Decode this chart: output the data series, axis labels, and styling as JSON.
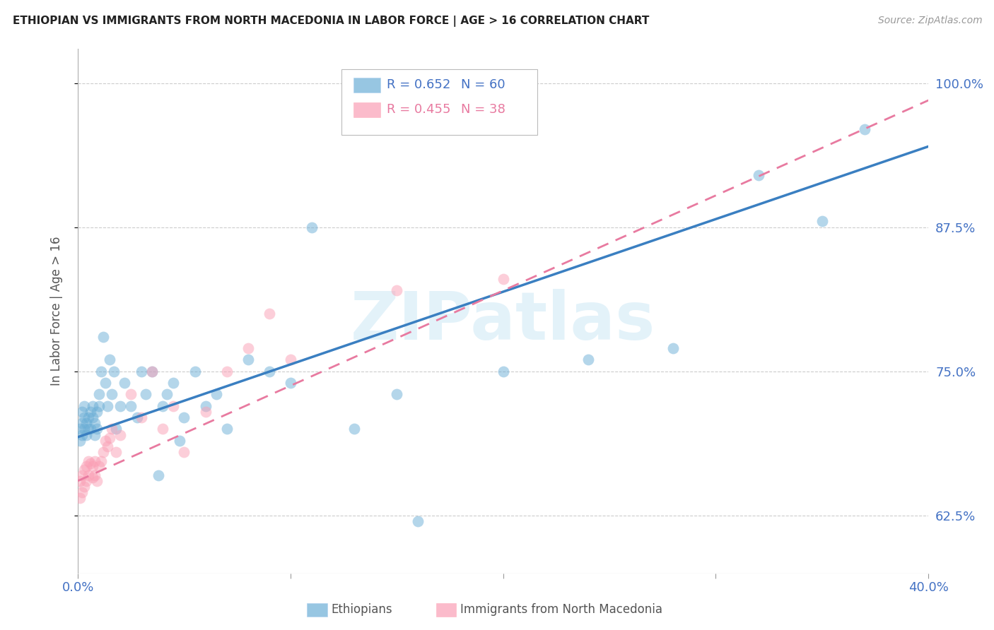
{
  "title": "ETHIOPIAN VS IMMIGRANTS FROM NORTH MACEDONIA IN LABOR FORCE | AGE > 16 CORRELATION CHART",
  "source": "Source: ZipAtlas.com",
  "ylabel": "In Labor Force | Age > 16",
  "xlim": [
    0.0,
    0.4
  ],
  "ylim": [
    0.575,
    1.03
  ],
  "xticks": [
    0.0,
    0.1,
    0.2,
    0.3,
    0.4
  ],
  "xtick_labels": [
    "0.0%",
    "",
    "",
    "",
    "40.0%"
  ],
  "ytick_labels_right": [
    "62.5%",
    "75.0%",
    "87.5%",
    "100.0%"
  ],
  "yticks_right": [
    0.625,
    0.75,
    0.875,
    1.0
  ],
  "blue_color": "#6baed6",
  "pink_color": "#fa9fb5",
  "blue_line_color": "#3a7fc1",
  "pink_line_color": "#e87aa0",
  "blue_label": "Ethiopians",
  "pink_label": "Immigrants from North Macedonia",
  "watermark": "ZIPatlas",
  "background_color": "#ffffff",
  "grid_color": "#cccccc",
  "blue_scatter_x": [
    0.001,
    0.001,
    0.002,
    0.002,
    0.002,
    0.003,
    0.003,
    0.003,
    0.004,
    0.004,
    0.005,
    0.005,
    0.006,
    0.006,
    0.007,
    0.007,
    0.008,
    0.008,
    0.009,
    0.009,
    0.01,
    0.01,
    0.011,
    0.012,
    0.013,
    0.014,
    0.015,
    0.016,
    0.017,
    0.018,
    0.02,
    0.022,
    0.025,
    0.028,
    0.03,
    0.032,
    0.035,
    0.038,
    0.04,
    0.042,
    0.045,
    0.048,
    0.05,
    0.055,
    0.06,
    0.065,
    0.07,
    0.08,
    0.09,
    0.1,
    0.11,
    0.13,
    0.15,
    0.16,
    0.2,
    0.24,
    0.28,
    0.32,
    0.35,
    0.37
  ],
  "blue_scatter_y": [
    0.7,
    0.69,
    0.695,
    0.705,
    0.715,
    0.7,
    0.71,
    0.72,
    0.695,
    0.705,
    0.7,
    0.71,
    0.715,
    0.7,
    0.71,
    0.72,
    0.695,
    0.705,
    0.715,
    0.7,
    0.72,
    0.73,
    0.75,
    0.78,
    0.74,
    0.72,
    0.76,
    0.73,
    0.75,
    0.7,
    0.72,
    0.74,
    0.72,
    0.71,
    0.75,
    0.73,
    0.75,
    0.66,
    0.72,
    0.73,
    0.74,
    0.69,
    0.71,
    0.75,
    0.72,
    0.73,
    0.7,
    0.76,
    0.75,
    0.74,
    0.875,
    0.7,
    0.73,
    0.62,
    0.75,
    0.76,
    0.77,
    0.92,
    0.88,
    0.96
  ],
  "pink_scatter_x": [
    0.001,
    0.001,
    0.002,
    0.002,
    0.003,
    0.003,
    0.004,
    0.004,
    0.005,
    0.005,
    0.006,
    0.007,
    0.007,
    0.008,
    0.008,
    0.009,
    0.01,
    0.011,
    0.012,
    0.013,
    0.014,
    0.015,
    0.016,
    0.018,
    0.02,
    0.025,
    0.03,
    0.035,
    0.04,
    0.045,
    0.05,
    0.06,
    0.07,
    0.08,
    0.09,
    0.1,
    0.15,
    0.2
  ],
  "pink_scatter_y": [
    0.64,
    0.655,
    0.645,
    0.66,
    0.65,
    0.665,
    0.655,
    0.668,
    0.66,
    0.672,
    0.67,
    0.658,
    0.668,
    0.66,
    0.672,
    0.655,
    0.668,
    0.672,
    0.68,
    0.69,
    0.685,
    0.692,
    0.7,
    0.68,
    0.695,
    0.73,
    0.71,
    0.75,
    0.7,
    0.72,
    0.68,
    0.715,
    0.75,
    0.77,
    0.8,
    0.76,
    0.82,
    0.83
  ],
  "blue_line_x0": 0.0,
  "blue_line_y0": 0.693,
  "blue_line_x1": 0.4,
  "blue_line_y1": 0.945,
  "pink_line_x0": 0.0,
  "pink_line_y0": 0.655,
  "pink_line_x1": 0.4,
  "pink_line_y1": 0.985
}
